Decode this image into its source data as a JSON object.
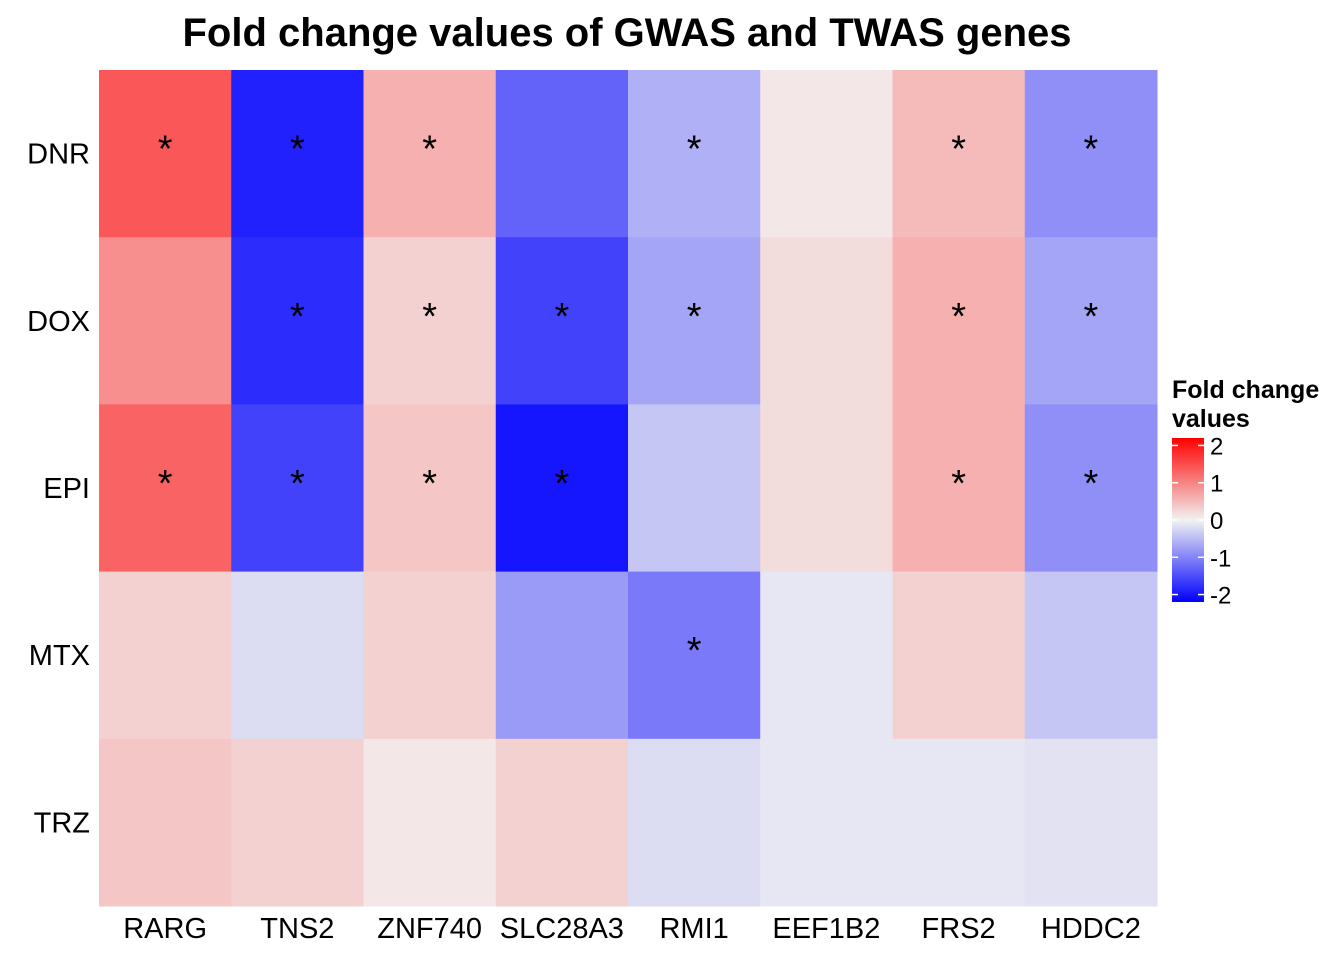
{
  "chart_data": {
    "type": "heatmap",
    "title": "Fold change values of GWAS and TWAS genes",
    "xlabel": "",
    "ylabel": "",
    "x_categories": [
      "RARG",
      "TNS2",
      "ZNF740",
      "SLC28A3",
      "RMI1",
      "EEF1B2",
      "FRS2",
      "HDDC2"
    ],
    "y_categories": [
      "DNR",
      "DOX",
      "EPI",
      "MTX",
      "TRZ"
    ],
    "values": [
      [
        1.4,
        -1.9,
        0.6,
        -1.3,
        -0.6,
        0.1,
        0.5,
        -0.9
      ],
      [
        0.9,
        -1.8,
        0.3,
        -1.6,
        -0.7,
        0.2,
        0.6,
        -0.7
      ],
      [
        1.3,
        -1.6,
        0.4,
        -2.0,
        -0.4,
        0.2,
        0.6,
        -0.9
      ],
      [
        0.3,
        -0.2,
        0.3,
        -0.8,
        -1.1,
        -0.1,
        0.3,
        -0.4
      ],
      [
        0.4,
        0.3,
        0.1,
        0.3,
        -0.2,
        -0.1,
        -0.1,
        -0.15
      ]
    ],
    "significant": [
      [
        true,
        true,
        true,
        false,
        true,
        false,
        true,
        true
      ],
      [
        false,
        true,
        true,
        true,
        true,
        false,
        true,
        true
      ],
      [
        true,
        true,
        true,
        true,
        false,
        false,
        true,
        true
      ],
      [
        false,
        false,
        false,
        false,
        true,
        false,
        false,
        false
      ],
      [
        false,
        false,
        false,
        false,
        false,
        false,
        false,
        false
      ]
    ],
    "significance_marker": "*",
    "color_scale": {
      "low": "#0000ff",
      "mid": "#f2f2f2",
      "high": "#ff0000",
      "limits": [
        -2.2,
        2.2
      ]
    },
    "legend": {
      "title_line1": "Fold change",
      "title_line2": "values",
      "ticks": [
        2,
        1,
        0,
        -1,
        -2
      ],
      "tick_labels": [
        "2",
        "1",
        "0",
        "-1",
        "-2"
      ],
      "placement": "right"
    },
    "grid": false
  }
}
